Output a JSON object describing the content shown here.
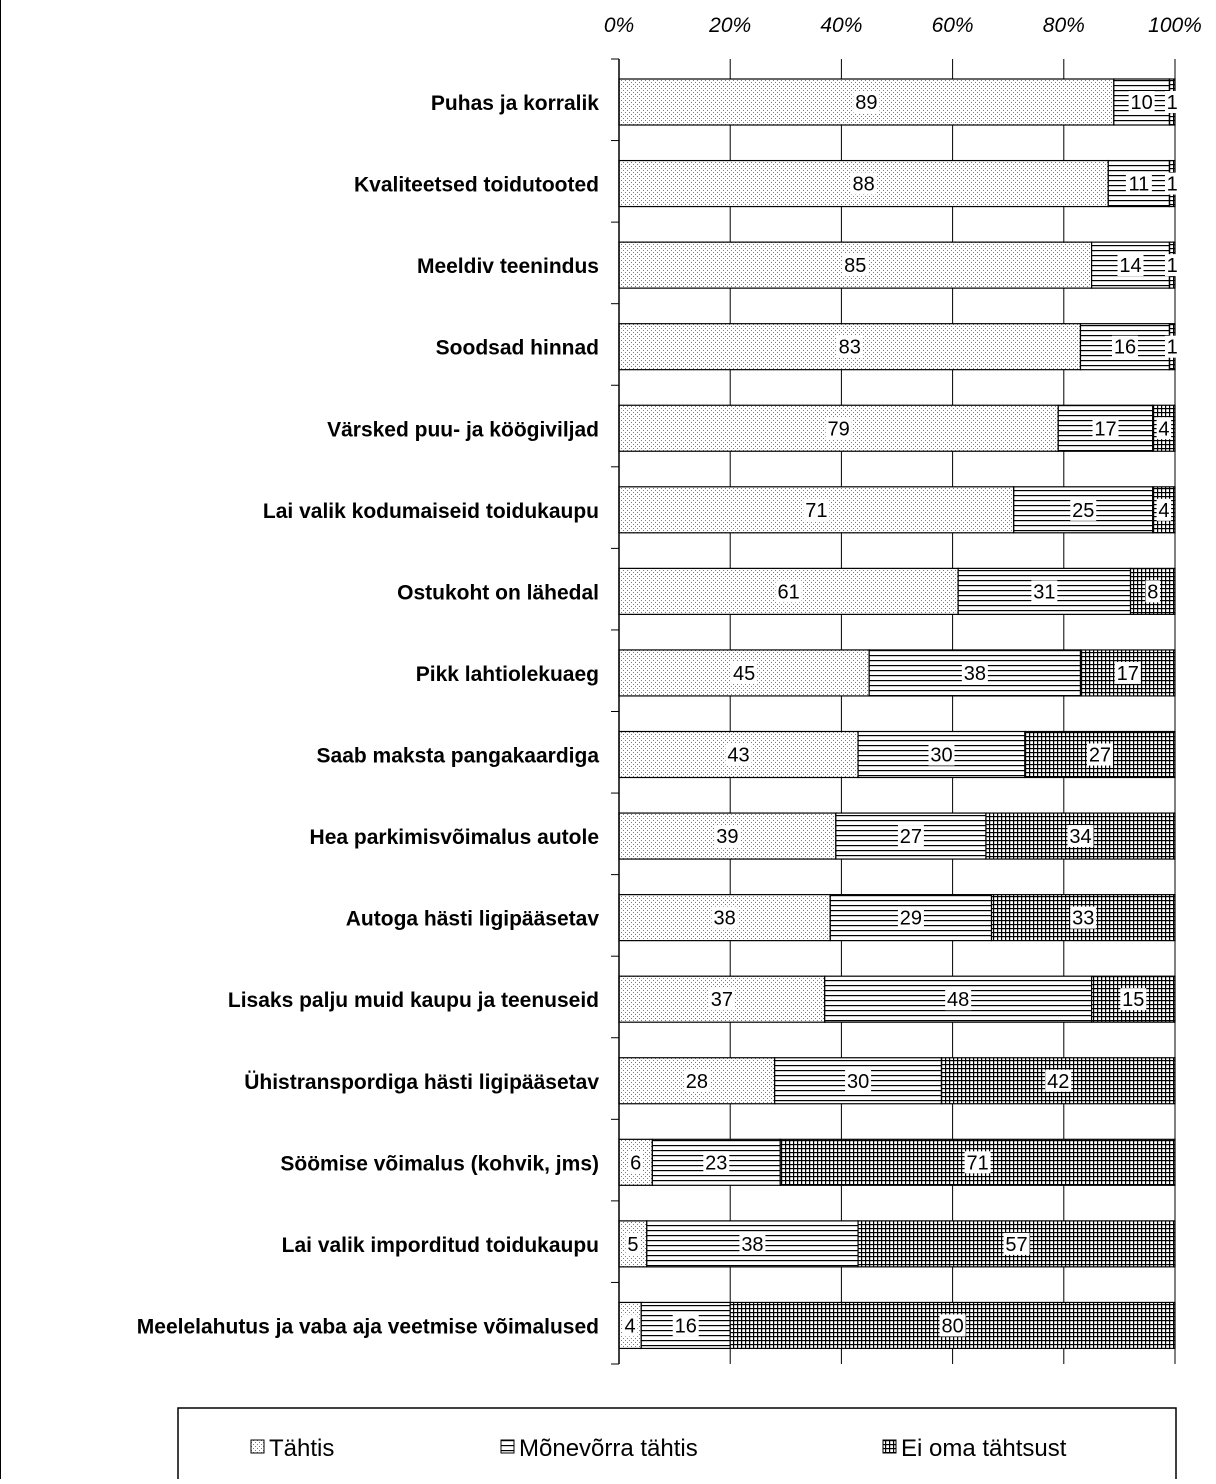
{
  "chart_data": {
    "type": "bar",
    "orientation": "horizontal",
    "stacked": "percent",
    "title": "",
    "xlabel": "",
    "ylabel": "",
    "xlim": [
      0,
      100
    ],
    "ticks": [
      "0%",
      "20%",
      "40%",
      "60%",
      "80%",
      "100%"
    ],
    "tick_values": [
      0,
      20,
      40,
      60,
      80,
      100
    ],
    "grid": true,
    "legend_position": "bottom",
    "categories": [
      "Puhas ja korralik",
      "Kvaliteetsed toidutooted",
      "Meeldiv teenindus",
      "Soodsad hinnad",
      "Värsked puu- ja köögiviljad",
      "Lai valik kodumaiseid toidukaupu",
      "Ostukoht on lähedal",
      "Pikk lahtiolekuaeg",
      "Saab maksta pangakaardiga",
      "Hea parkimisvõimalus autole",
      "Autoga hästi ligipääsetav",
      "Lisaks palju muid kaupu ja teenuseid",
      "Ühistranspordiga hästi ligipääsetav",
      "Söömise võimalus (kohvik, jms)",
      "Lai valik imporditud toidukaupu",
      "Meelelahutus ja vaba aja veetmise võimalused"
    ],
    "series": [
      {
        "name": "Tähtis",
        "pattern": "dots",
        "values": [
          89,
          88,
          85,
          83,
          79,
          71,
          61,
          45,
          43,
          39,
          38,
          37,
          28,
          6,
          5,
          4
        ]
      },
      {
        "name": "Mõnevõrra tähtis",
        "pattern": "hlines",
        "values": [
          10,
          11,
          14,
          16,
          17,
          25,
          31,
          38,
          30,
          27,
          29,
          48,
          30,
          23,
          38,
          16
        ]
      },
      {
        "name": "Ei oma tähtsust",
        "pattern": "grid",
        "values": [
          1,
          1,
          1,
          1,
          4,
          4,
          8,
          17,
          27,
          34,
          33,
          15,
          42,
          71,
          57,
          80
        ]
      }
    ]
  },
  "legend": {
    "items": [
      {
        "label": "Tähtis",
        "icon": "dotted-square-icon"
      },
      {
        "label": "Mõnevõrra tähtis",
        "icon": "striped-square-icon"
      },
      {
        "label": "Ei oma tähtsust",
        "icon": "grid-square-icon"
      }
    ]
  },
  "colors": {
    "line": "#000000",
    "background": "#ffffff",
    "dot": "#8a8a8a"
  }
}
